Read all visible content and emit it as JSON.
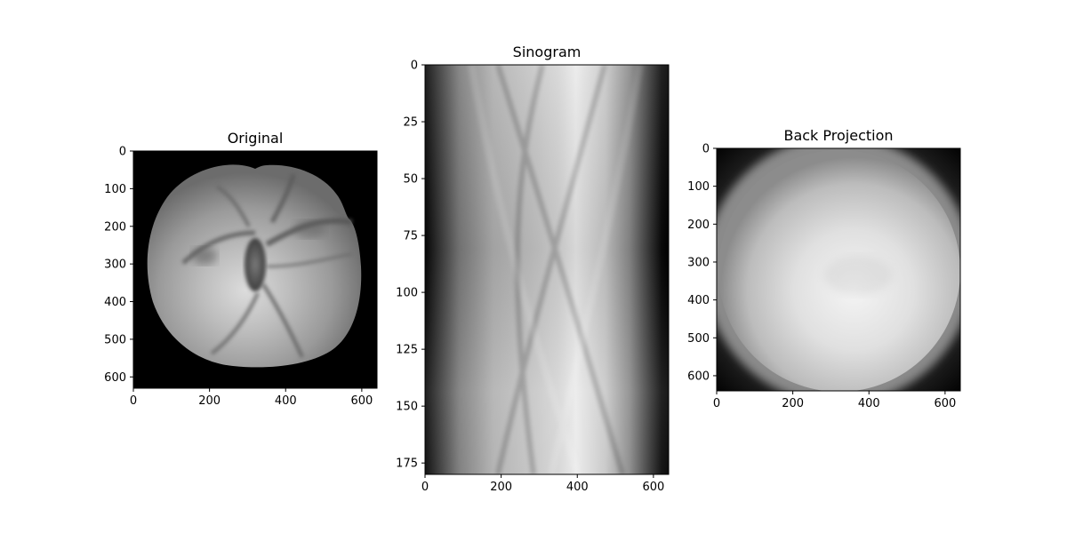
{
  "figure": {
    "background": "#ffffff",
    "colormap": "gray"
  },
  "chart_data": [
    {
      "type": "heatmap",
      "title": "Original",
      "xlabel": "",
      "ylabel": "",
      "xlim": [
        0,
        640
      ],
      "ylim": [
        630,
        0
      ],
      "xticks": [
        0,
        200,
        400,
        600
      ],
      "yticks": [
        0,
        100,
        200,
        300,
        400,
        500,
        600
      ],
      "content": "grayscale CT-like slice of an apple cross-section on a black background",
      "grid": false
    },
    {
      "type": "heatmap",
      "title": "Sinogram",
      "xlabel": "",
      "ylabel": "",
      "xlim": [
        0,
        640
      ],
      "ylim": [
        180,
        0
      ],
      "xticks": [
        0,
        200,
        400,
        600
      ],
      "yticks": [
        0,
        25,
        50,
        75,
        100,
        125,
        150,
        175
      ],
      "content": "grayscale sinogram, bright band between dark edges",
      "grid": false
    },
    {
      "type": "heatmap",
      "title": "Back Projection",
      "xlabel": "",
      "ylabel": "",
      "xlim": [
        0,
        640
      ],
      "ylim": [
        640,
        0
      ],
      "xticks": [
        0,
        200,
        400,
        600
      ],
      "yticks": [
        0,
        100,
        200,
        300,
        400,
        500,
        600
      ],
      "content": "blurred bright disc reconstruction on dark corners",
      "grid": false
    }
  ]
}
